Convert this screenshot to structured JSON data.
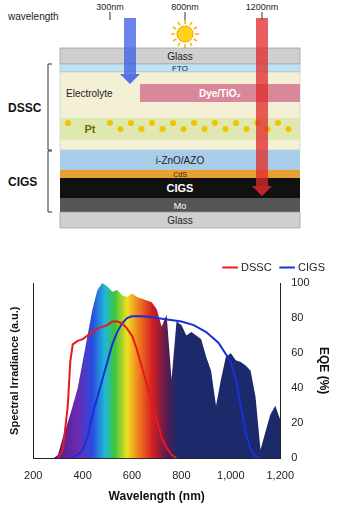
{
  "diagram": {
    "wavelength_scale": {
      "label": "wavelength",
      "marks": [
        "300nm",
        "800nm",
        "1200nm"
      ]
    },
    "dssc": {
      "label": "DSSC",
      "layers": [
        "Glass",
        "FTO",
        "Electrolyte",
        "Dye/TiO₂",
        "Pt"
      ]
    },
    "cigs": {
      "label": "CIGS",
      "layers": [
        "i-ZnO/AZO",
        "CdS",
        "CIGS",
        "Mo",
        "Glass"
      ]
    }
  },
  "chart_data": {
    "type": "line",
    "x_label": "Wavelength (nm)",
    "y_label": "EQE (%)",
    "y2_label": "Spectral Irradiance (a.u.)",
    "xlim": [
      200,
      1200
    ],
    "xticks": [
      200,
      400,
      600,
      800,
      1000,
      1200
    ],
    "ylim": [
      0,
      100
    ],
    "yticks": [
      0,
      20,
      40,
      60,
      80,
      100
    ],
    "y2lim": [
      0,
      100
    ],
    "y2ticks": [],
    "grid": false,
    "legend": "top",
    "series": [
      {
        "type": "area",
        "color": "#1c2a6b",
        "axis": "y2",
        "x": [
          280,
          300,
          320,
          350,
          380,
          400,
          420,
          440,
          460,
          480,
          500,
          520,
          540,
          560,
          580,
          600,
          620,
          640,
          660,
          680,
          700,
          720,
          740,
          760,
          780,
          800,
          820,
          840,
          860,
          880,
          900,
          920,
          940,
          960,
          980,
          1000,
          1020,
          1040,
          1060,
          1080,
          1100,
          1120,
          1140,
          1160,
          1180,
          1200
        ],
        "values": [
          0,
          2,
          12,
          25,
          40,
          55,
          70,
          85,
          96,
          100,
          98,
          95,
          96,
          93,
          92,
          94,
          92,
          91,
          90,
          89,
          85,
          75,
          82,
          45,
          78,
          76,
          70,
          72,
          70,
          68,
          58,
          50,
          30,
          45,
          58,
          60,
          56,
          55,
          53,
          50,
          35,
          5,
          15,
          25,
          30,
          22
        ]
      },
      {
        "name": "DSSC",
        "color": "#e8191c",
        "x": [
          300,
          320,
          340,
          350,
          360,
          380,
          400,
          420,
          440,
          460,
          480,
          500,
          520,
          540,
          560,
          580,
          600,
          620,
          640,
          660,
          680,
          700,
          720,
          740,
          760,
          780
        ],
        "values": [
          0,
          5,
          30,
          55,
          65,
          67,
          68,
          70,
          72,
          74,
          75,
          76,
          78,
          78,
          77,
          74,
          70,
          62,
          52,
          42,
          32,
          22,
          12,
          6,
          2,
          0
        ]
      },
      {
        "name": "CIGS",
        "color": "#1a2fd6",
        "x": [
          350,
          380,
          400,
          420,
          440,
          460,
          480,
          500,
          520,
          540,
          560,
          580,
          600,
          650,
          700,
          750,
          800,
          850,
          900,
          950,
          1000,
          1020,
          1040,
          1060,
          1080,
          1100,
          1120
        ],
        "values": [
          0,
          2,
          5,
          12,
          25,
          35,
          45,
          55,
          65,
          72,
          77,
          80,
          81,
          81,
          80,
          79,
          78,
          76,
          72,
          66,
          55,
          45,
          30,
          15,
          5,
          1,
          0
        ]
      }
    ]
  }
}
